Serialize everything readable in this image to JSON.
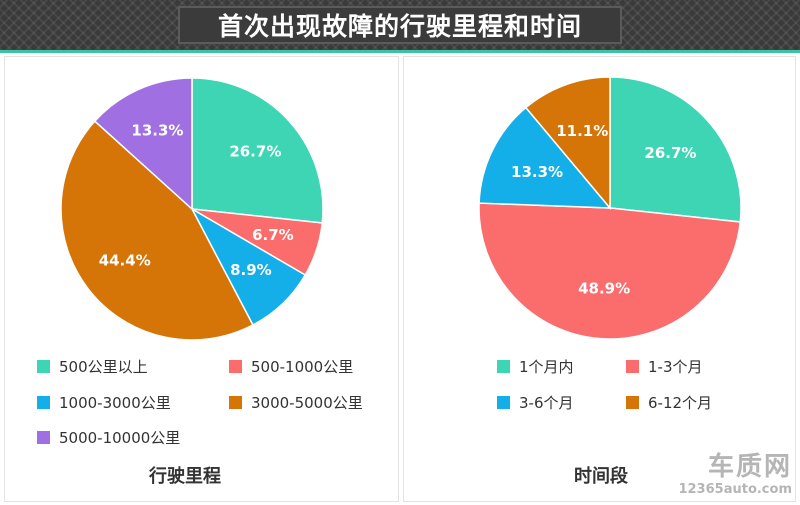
{
  "title": "首次出现故障的行驶里程和时间",
  "chart_data": [
    {
      "type": "pie",
      "label": "行驶里程",
      "slices": [
        {
          "name": "500公里以上",
          "value": 26.7,
          "label": "26.7%",
          "color": "#3dd5b4"
        },
        {
          "name": "500-1000公里",
          "value": 6.7,
          "label": "6.7%",
          "color": "#fb6c6c"
        },
        {
          "name": "1000-3000公里",
          "value": 8.9,
          "label": "8.9%",
          "color": "#14aee8"
        },
        {
          "name": "3000-5000公里",
          "value": 44.4,
          "label": "44.4%",
          "color": "#d57407"
        },
        {
          "name": "5000-10000公里",
          "value": 13.3,
          "label": "13.3%",
          "color": "#a070e2"
        }
      ]
    },
    {
      "type": "pie",
      "label": "时间段",
      "slices": [
        {
          "name": "1个月内",
          "value": 26.7,
          "label": "26.7%",
          "color": "#3dd5b4"
        },
        {
          "name": "1-3个月",
          "value": 48.9,
          "label": "48.9%",
          "color": "#fb6c6c"
        },
        {
          "name": "3-6个月",
          "value": 13.3,
          "label": "13.3%",
          "color": "#14aee8"
        },
        {
          "name": "6-12个月",
          "value": 11.1,
          "label": "11.1%",
          "color": "#d57407"
        }
      ]
    }
  ],
  "watermark": {
    "brand": "车质网",
    "url": "12365auto.com"
  }
}
